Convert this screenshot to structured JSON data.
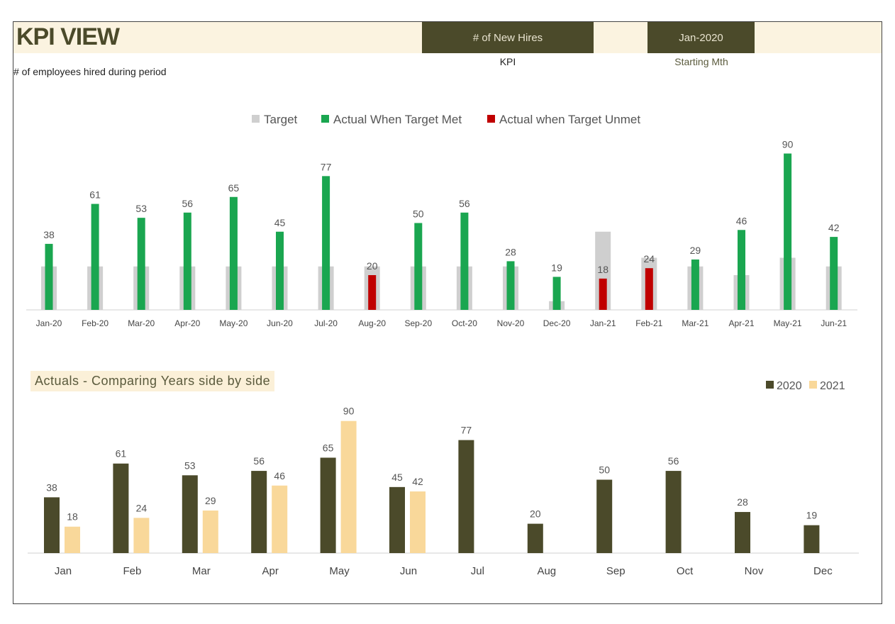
{
  "header": {
    "title": "KPI VIEW",
    "kpi_value": "# of New Hires",
    "kpi_caption": "KPI",
    "month_value": "Jan-2020",
    "month_caption": "Starting Mth",
    "subtitle": "# of employees hired during period"
  },
  "colors": {
    "target": "#cfcfcf",
    "met": "#1aa650",
    "unmet": "#c00000",
    "y2020": "#4b4a2a",
    "y2021": "#f9d89a",
    "header_bg": "#fbf3e0"
  },
  "chart_data": [
    {
      "type": "bar",
      "categories": [
        "Jan-20",
        "Feb-20",
        "Mar-20",
        "Apr-20",
        "May-20",
        "Jun-20",
        "Jul-20",
        "Aug-20",
        "Sep-20",
        "Oct-20",
        "Nov-20",
        "Dec-20",
        "Jan-21",
        "Feb-21",
        "Mar-21",
        "Apr-21",
        "May-21",
        "Jun-21"
      ],
      "series": [
        {
          "name": "Target",
          "values": [
            25,
            25,
            25,
            25,
            25,
            25,
            25,
            25,
            25,
            25,
            25,
            5,
            45,
            30,
            25,
            20,
            30,
            25
          ]
        },
        {
          "name": "Actual When Target Met",
          "values": [
            38,
            61,
            53,
            56,
            65,
            45,
            77,
            null,
            50,
            56,
            28,
            19,
            null,
            null,
            29,
            46,
            90,
            42
          ]
        },
        {
          "name": "Actual when Target Unmet",
          "values": [
            null,
            null,
            null,
            null,
            null,
            null,
            null,
            20,
            null,
            null,
            null,
            null,
            18,
            24,
            null,
            null,
            null,
            null
          ]
        }
      ],
      "data_labels": [
        38,
        61,
        53,
        56,
        65,
        45,
        77,
        20,
        50,
        56,
        28,
        19,
        18,
        24,
        29,
        46,
        90,
        42
      ],
      "legend_position": "top-center",
      "ylim": [
        0,
        100
      ],
      "grid": false
    },
    {
      "type": "bar",
      "title": "Actuals - Comparing Years side by side",
      "categories": [
        "Jan",
        "Feb",
        "Mar",
        "Apr",
        "May",
        "Jun",
        "Jul",
        "Aug",
        "Sep",
        "Oct",
        "Nov",
        "Dec"
      ],
      "series": [
        {
          "name": "2020",
          "values": [
            38,
            61,
            53,
            56,
            65,
            45,
            77,
            20,
            50,
            56,
            28,
            19
          ]
        },
        {
          "name": "2021",
          "values": [
            18,
            24,
            29,
            46,
            90,
            42,
            null,
            null,
            null,
            null,
            null,
            null
          ]
        }
      ],
      "legend_position": "top-right",
      "ylim": [
        0,
        100
      ],
      "grid": false
    }
  ]
}
